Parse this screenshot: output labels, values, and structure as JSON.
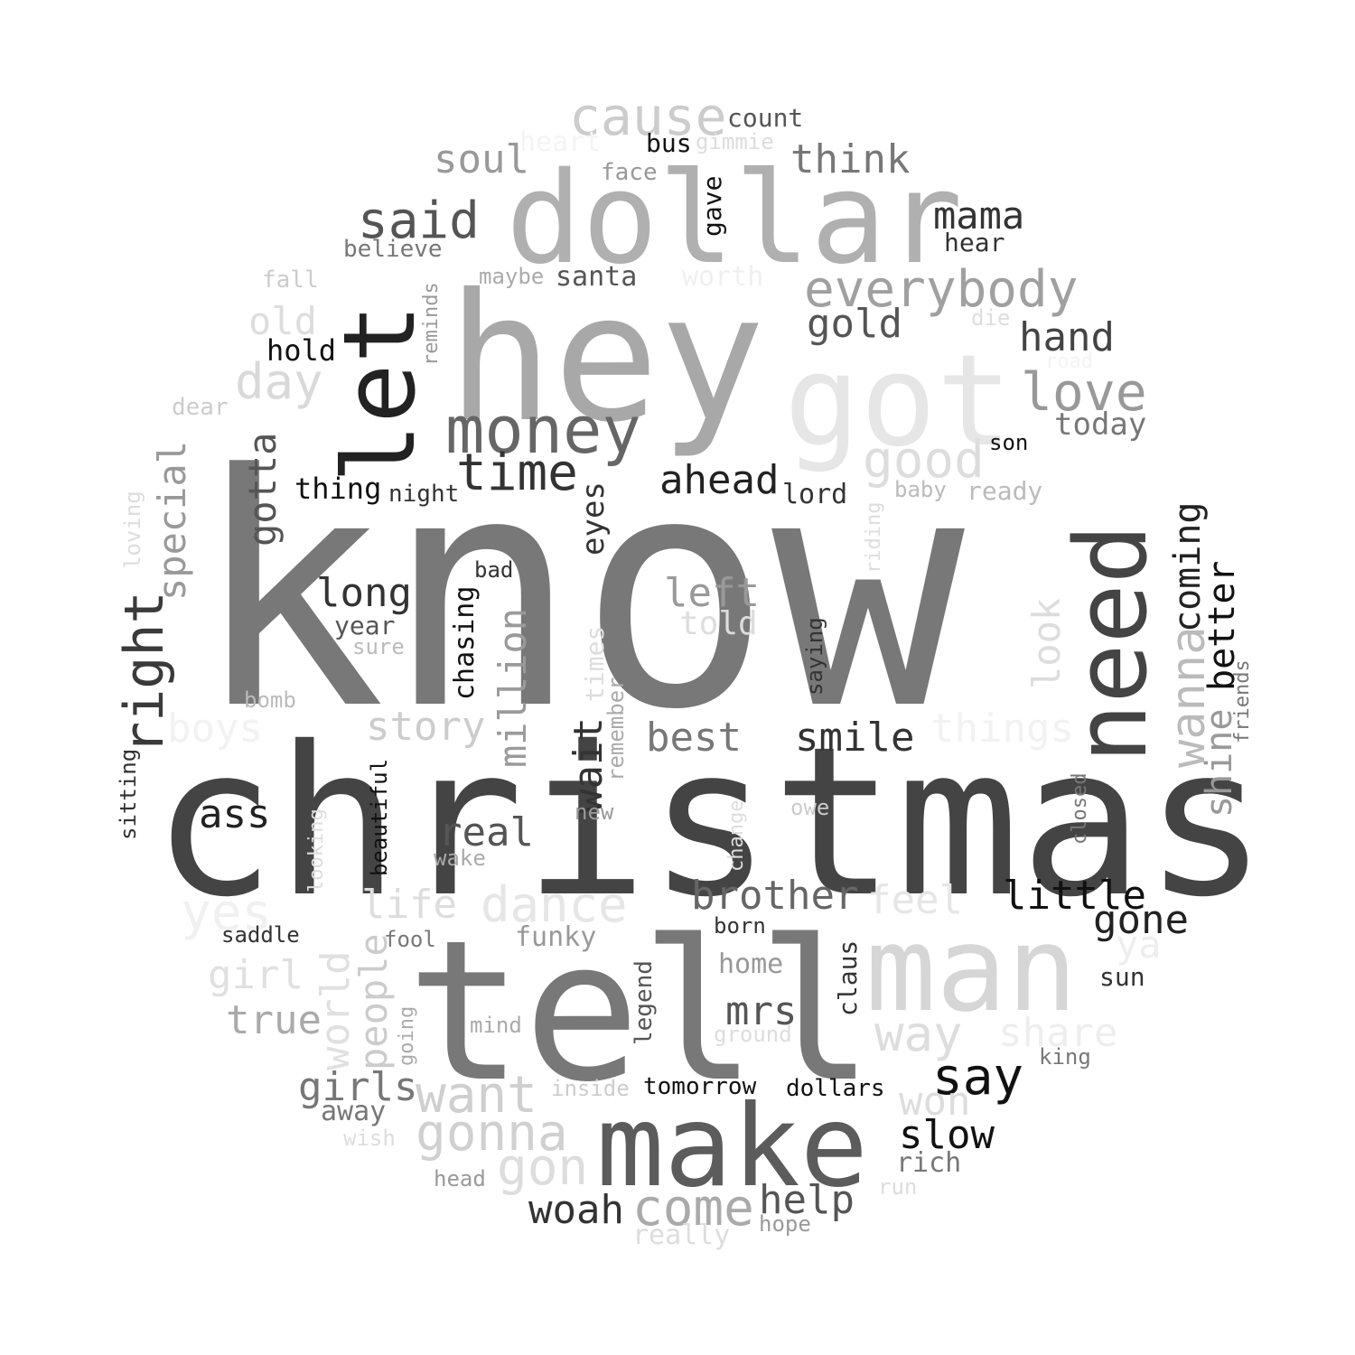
{
  "title": "",
  "words": [
    {
      "text": "know",
      "color": "#787878"
    },
    {
      "text": "christmas",
      "color": "#444444"
    },
    {
      "text": "tell",
      "color": "#787878"
    },
    {
      "text": "hey",
      "color": "#a8a8a8"
    },
    {
      "text": "dollar",
      "color": "#b0b0b0"
    },
    {
      "text": "got",
      "color": "#e6e6e6"
    },
    {
      "text": "man",
      "color": "#d6d6d6"
    },
    {
      "text": "make",
      "color": "#5c5c5c"
    },
    {
      "text": "need",
      "color": "#444444"
    },
    {
      "text": "let",
      "color": "#222222"
    },
    {
      "text": "money",
      "color": "#666666"
    },
    {
      "text": "cause",
      "color": "#cccccc"
    },
    {
      "text": "everybody",
      "color": "#a0a0a0"
    },
    {
      "text": "said",
      "color": "#555555"
    },
    {
      "text": "good",
      "color": "#dddddd"
    },
    {
      "text": "love",
      "color": "#999999"
    },
    {
      "text": "time",
      "color": "#333333"
    },
    {
      "text": "right",
      "color": "#3a3a3a"
    },
    {
      "text": "come",
      "color": "#aaaaaa"
    },
    {
      "text": "gonna",
      "color": "#d0d0d0"
    },
    {
      "text": "want",
      "color": "#cfcfcf"
    },
    {
      "text": "wanna",
      "color": "#bbbbbb"
    },
    {
      "text": "day",
      "color": "#d9d9d9"
    },
    {
      "text": "think",
      "color": "#777777"
    },
    {
      "text": "soul",
      "color": "#999999"
    },
    {
      "text": "mama",
      "color": "#333333"
    },
    {
      "text": "hand",
      "color": "#444444"
    },
    {
      "text": "gold",
      "color": "#555555"
    },
    {
      "text": "special",
      "color": "#999999"
    },
    {
      "text": "gotta",
      "color": "#555555"
    },
    {
      "text": "million",
      "color": "#9a9a9a"
    },
    {
      "text": "wait",
      "color": "#333333"
    },
    {
      "text": "ahead",
      "color": "#222222"
    },
    {
      "text": "long",
      "color": "#333333"
    },
    {
      "text": "left",
      "color": "#999999"
    },
    {
      "text": "smile",
      "color": "#333333"
    },
    {
      "text": "best",
      "color": "#777777"
    },
    {
      "text": "story",
      "color": "#cccccc"
    },
    {
      "text": "real",
      "color": "#555555"
    },
    {
      "text": "ass",
      "color": "#222222"
    },
    {
      "text": "world",
      "color": "#e0e0e0"
    },
    {
      "text": "people",
      "color": "#cccccc"
    },
    {
      "text": "life",
      "color": "#dddddd"
    },
    {
      "text": "dance",
      "color": "#e6e6e6"
    },
    {
      "text": "brother",
      "color": "#666666"
    },
    {
      "text": "feel",
      "color": "#e6e6e6"
    },
    {
      "text": "little",
      "color": "#111111"
    },
    {
      "text": "gone",
      "color": "#222222"
    },
    {
      "text": "say",
      "color": "#111111"
    },
    {
      "text": "slow",
      "color": "#111111"
    },
    {
      "text": "way",
      "color": "#dddddd"
    },
    {
      "text": "share",
      "color": "#eeeeee"
    },
    {
      "text": "mrs",
      "color": "#555555"
    },
    {
      "text": "help",
      "color": "#555555"
    },
    {
      "text": "woah",
      "color": "#333333"
    },
    {
      "text": "girls",
      "color": "#777777"
    },
    {
      "text": "true",
      "color": "#aaaaaa"
    },
    {
      "text": "girl",
      "color": "#e0e0e0"
    },
    {
      "text": "won",
      "color": "#dddddd"
    },
    {
      "text": "gon",
      "color": "#dddddd"
    },
    {
      "text": "yes",
      "color": "#f0f0f0"
    },
    {
      "text": "boys",
      "color": "#f2f2f2"
    },
    {
      "text": "things",
      "color": "#f2f2f2"
    },
    {
      "text": "coming",
      "color": "#222222"
    },
    {
      "text": "better",
      "color": "#111111"
    },
    {
      "text": "shine",
      "color": "#999999"
    },
    {
      "text": "look",
      "color": "#dddddd"
    },
    {
      "text": "eyes",
      "color": "#333333"
    },
    {
      "text": "chasing",
      "color": "#111111"
    },
    {
      "text": "old",
      "color": "#dddddd"
    },
    {
      "text": "today",
      "color": "#777777"
    },
    {
      "text": "thing",
      "color": "#111111"
    },
    {
      "text": "hold",
      "color": "#111111"
    },
    {
      "text": "told",
      "color": "#dddddd"
    },
    {
      "text": "ya",
      "color": "#eeeeee"
    },
    {
      "text": "count",
      "color": "#555555"
    },
    {
      "text": "bus",
      "color": "#111111"
    },
    {
      "text": "face",
      "color": "#999999"
    },
    {
      "text": "heart",
      "color": "#f4f4f4"
    },
    {
      "text": "gimmie",
      "color": "#dddddd"
    },
    {
      "text": "gave",
      "color": "#111111"
    },
    {
      "text": "hear",
      "color": "#333333"
    },
    {
      "text": "believe",
      "color": "#777777"
    },
    {
      "text": "fall",
      "color": "#cccccc"
    },
    {
      "text": "maybe",
      "color": "#aaaaaa"
    },
    {
      "text": "santa",
      "color": "#555555"
    },
    {
      "text": "worth",
      "color": "#f0f0f0"
    },
    {
      "text": "die",
      "color": "#dddddd"
    },
    {
      "text": "reminds",
      "color": "#999999"
    },
    {
      "text": "road",
      "color": "#f4f4f4"
    },
    {
      "text": "dear",
      "color": "#cccccc"
    },
    {
      "text": "son",
      "color": "#111111"
    },
    {
      "text": "night",
      "color": "#333333"
    },
    {
      "text": "lord",
      "color": "#333333"
    },
    {
      "text": "baby",
      "color": "#bbbbbb"
    },
    {
      "text": "ready",
      "color": "#bbbbbb"
    },
    {
      "text": "riding",
      "color": "#dddddd"
    },
    {
      "text": "loving",
      "color": "#dddddd"
    },
    {
      "text": "bad",
      "color": "#333333"
    },
    {
      "text": "year",
      "color": "#555555"
    },
    {
      "text": "sure",
      "color": "#bbbbbb"
    },
    {
      "text": "times",
      "color": "#dddddd"
    },
    {
      "text": "remember",
      "color": "#aaaaaa"
    },
    {
      "text": "saying",
      "color": "#333333"
    },
    {
      "text": "friends",
      "color": "#777777"
    },
    {
      "text": "bomb",
      "color": "#bbbbbb"
    },
    {
      "text": "sitting",
      "color": "#333333"
    },
    {
      "text": "beautiful",
      "color": "#111111"
    },
    {
      "text": "new",
      "color": "#999999"
    },
    {
      "text": "change",
      "color": "#dddddd"
    },
    {
      "text": "owe",
      "color": "#cccccc"
    },
    {
      "text": "closed",
      "color": "#777777"
    },
    {
      "text": "looking",
      "color": "#dddddd"
    },
    {
      "text": "wake",
      "color": "#aaaaaa"
    },
    {
      "text": "saddle",
      "color": "#333333"
    },
    {
      "text": "fool",
      "color": "#777777"
    },
    {
      "text": "funky",
      "color": "#999999"
    },
    {
      "text": "born",
      "color": "#333333"
    },
    {
      "text": "home",
      "color": "#999999"
    },
    {
      "text": "legend",
      "color": "#555555"
    },
    {
      "text": "claus",
      "color": "#333333"
    },
    {
      "text": "sun",
      "color": "#333333"
    },
    {
      "text": "mind",
      "color": "#aaaaaa"
    },
    {
      "text": "ground",
      "color": "#dddddd"
    },
    {
      "text": "going",
      "color": "#aaaaaa"
    },
    {
      "text": "king",
      "color": "#777777"
    },
    {
      "text": "away",
      "color": "#777777"
    },
    {
      "text": "inside",
      "color": "#cccccc"
    },
    {
      "text": "tomorrow",
      "color": "#111111"
    },
    {
      "text": "dollars",
      "color": "#111111"
    },
    {
      "text": "wish",
      "color": "#dddddd"
    },
    {
      "text": "rich",
      "color": "#777777"
    },
    {
      "text": "head",
      "color": "#999999"
    },
    {
      "text": "run",
      "color": "#dddddd"
    },
    {
      "text": "really",
      "color": "#dddddd"
    },
    {
      "text": "hope",
      "color": "#999999"
    }
  ]
}
